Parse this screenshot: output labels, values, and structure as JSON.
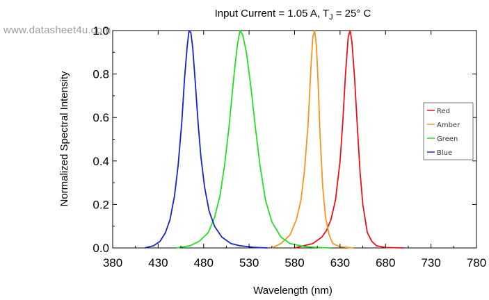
{
  "watermark": "www.datasheet4u.com",
  "chart_data": {
    "type": "line",
    "title_text": "Input Current = 1.05 A, T",
    "title_subscript": "J",
    "title_suffix": " = 25° C",
    "xlabel": "Wavelength (nm)",
    "ylabel": "Normalized Spectral Intensity",
    "xlim": [
      380,
      780
    ],
    "ylim": [
      0,
      1.0
    ],
    "xticks": [
      380,
      430,
      480,
      530,
      580,
      630,
      680,
      730,
      780
    ],
    "xticklabels": [
      "380",
      "430",
      "480",
      "530",
      "580",
      "630",
      "680",
      "730",
      "780"
    ],
    "yticks": [
      0.0,
      0.2,
      0.4,
      0.6,
      0.8,
      1.0
    ],
    "yticklabels": [
      "0.0",
      "0.2",
      "0.4",
      "0.6",
      "0.8",
      "1.0"
    ],
    "grid": false,
    "legend_position": "right",
    "series": [
      {
        "name": "Red",
        "color": "#e8101a",
        "x": [
          580,
          600,
          610,
          615,
          620,
          625,
          630,
          633,
          636,
          639,
          641,
          643,
          646,
          649,
          652,
          655,
          660,
          665,
          670,
          680,
          700
        ],
        "y": [
          0.0,
          0.02,
          0.05,
          0.08,
          0.13,
          0.22,
          0.4,
          0.58,
          0.8,
          0.97,
          1.0,
          0.95,
          0.78,
          0.56,
          0.35,
          0.2,
          0.07,
          0.03,
          0.01,
          0.002,
          0.0
        ]
      },
      {
        "name": "Amber",
        "color": "#f7941d",
        "x": [
          555,
          565,
          575,
          582,
          587,
          591,
          595,
          598,
          600,
          602,
          604,
          606,
          608,
          611,
          614,
          618,
          622,
          630,
          645
        ],
        "y": [
          0.0,
          0.02,
          0.06,
          0.13,
          0.22,
          0.36,
          0.58,
          0.83,
          0.97,
          1.0,
          0.93,
          0.75,
          0.52,
          0.28,
          0.14,
          0.06,
          0.02,
          0.005,
          0.0
        ]
      },
      {
        "name": "Green",
        "color": "#20e020",
        "x": [
          450,
          465,
          475,
          485,
          492,
          498,
          503,
          508,
          513,
          517,
          520,
          523,
          527,
          532,
          537,
          542,
          548,
          555,
          565,
          575,
          590,
          605,
          620
        ],
        "y": [
          0.0,
          0.01,
          0.03,
          0.07,
          0.14,
          0.24,
          0.38,
          0.56,
          0.78,
          0.93,
          1.0,
          0.98,
          0.9,
          0.74,
          0.55,
          0.38,
          0.22,
          0.12,
          0.05,
          0.02,
          0.007,
          0.002,
          0.0
        ]
      },
      {
        "name": "Blue",
        "color": "#1424c8",
        "x": [
          415,
          425,
          432,
          438,
          443,
          448,
          452,
          456,
          459,
          462,
          464,
          466,
          468,
          471,
          474,
          477,
          481,
          486,
          492,
          500,
          510,
          520,
          535,
          550
        ],
        "y": [
          0.0,
          0.01,
          0.03,
          0.07,
          0.13,
          0.24,
          0.38,
          0.58,
          0.78,
          0.93,
          1.0,
          0.99,
          0.92,
          0.75,
          0.57,
          0.42,
          0.28,
          0.17,
          0.1,
          0.05,
          0.02,
          0.01,
          0.003,
          0.0
        ]
      }
    ]
  }
}
